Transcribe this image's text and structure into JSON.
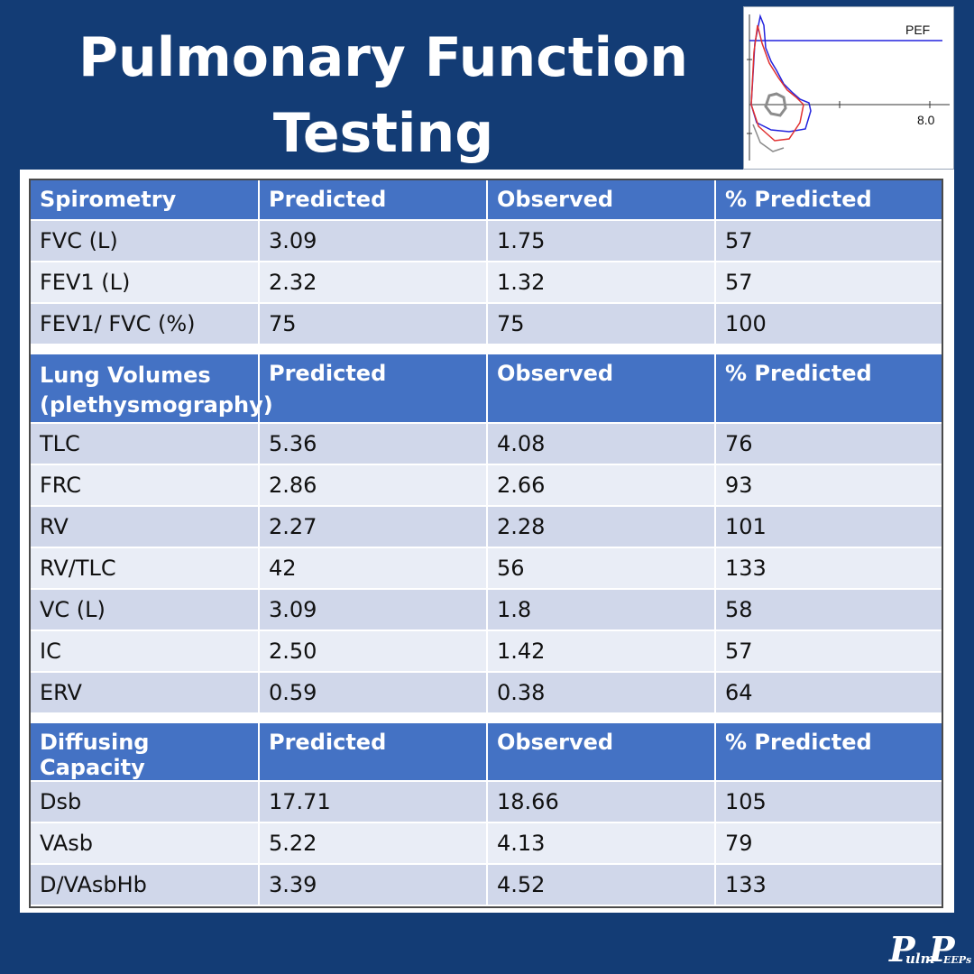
{
  "title": {
    "line1": "Pulmonary Function",
    "line2": "Testing"
  },
  "loop_graph": {
    "peak_label": "PEF",
    "axis_label": "8.0",
    "colors": {
      "predicted": "#2222dd",
      "observed": "#e03030",
      "tidal": "#8c8c8c"
    }
  },
  "sections": [
    {
      "header": [
        "Spirometry",
        "Predicted",
        "Observed",
        "% Predicted"
      ],
      "rows": [
        [
          "FVC (L)",
          "3.09",
          "1.75",
          "57"
        ],
        [
          "FEV1 (L)",
          "2.32",
          "1.32",
          "57"
        ],
        [
          "FEV1/ FVC (%)",
          "75",
          "75",
          "100"
        ]
      ]
    },
    {
      "header": [
        "Lung Volumes (plethysmography)",
        "Predicted",
        "Observed",
        "% Predicted"
      ],
      "rows": [
        [
          "TLC",
          "5.36",
          "4.08",
          "76"
        ],
        [
          "FRC",
          "2.86",
          "2.66",
          "93"
        ],
        [
          "RV",
          "2.27",
          "2.28",
          "101"
        ],
        [
          "RV/TLC",
          "42",
          "56",
          "133"
        ],
        [
          "VC (L)",
          "3.09",
          "1.8",
          "58"
        ],
        [
          "IC",
          "2.50",
          "1.42",
          "57"
        ],
        [
          "ERV",
          "0.59",
          "0.38",
          "64"
        ]
      ]
    },
    {
      "header": [
        "Diffusing Capacity",
        "Predicted",
        "Observed",
        "% Predicted"
      ],
      "rows": [
        [
          "Dsb",
          "17.71",
          "18.66",
          "105"
        ],
        [
          "VAsb",
          "5.22",
          "4.13",
          "79"
        ],
        [
          "D/VAsbHb",
          "3.39",
          "4.52",
          "133"
        ]
      ]
    }
  ],
  "logo": {
    "p1": "P",
    "ulm": "ulm",
    "p2": "P",
    "eeps": "EEPs"
  }
}
